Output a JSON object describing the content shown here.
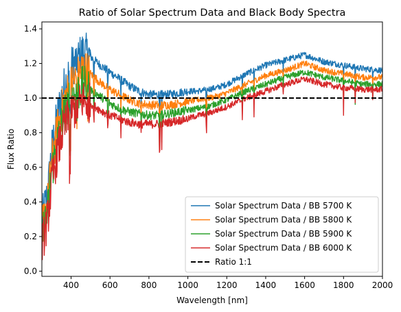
{
  "chart_data": {
    "type": "line",
    "title": "Ratio of Solar Spectrum Data and Black Body Spectra",
    "xlabel": "Wavelength [nm]",
    "ylabel": "Flux Ratio",
    "xlim": [
      250,
      2000
    ],
    "ylim": [
      -0.03,
      1.44
    ],
    "x_ticks": [
      400,
      600,
      800,
      1000,
      1200,
      1400,
      1600,
      1800,
      2000
    ],
    "y_ticks": [
      0.0,
      0.2,
      0.4,
      0.6,
      0.8,
      1.0,
      1.2,
      1.4
    ],
    "grid": false,
    "legend_position": "lower-right",
    "x": [
      250,
      280,
      300,
      330,
      360,
      400,
      430,
      460,
      500,
      550,
      600,
      650,
      700,
      750,
      800,
      850,
      900,
      950,
      1000,
      1050,
      1100,
      1150,
      1200,
      1300,
      1400,
      1500,
      1600,
      1700,
      1800,
      1900,
      2000
    ],
    "series": [
      {
        "name": "Solar Spectrum Data / BB 5700 K",
        "color": "#1f77b4",
        "values": [
          0.3,
          0.45,
          0.7,
          0.9,
          1.05,
          1.18,
          1.22,
          1.27,
          1.24,
          1.19,
          1.15,
          1.11,
          1.07,
          1.04,
          1.02,
          1.02,
          1.02,
          1.03,
          1.04,
          1.04,
          1.05,
          1.06,
          1.08,
          1.14,
          1.19,
          1.22,
          1.25,
          1.21,
          1.19,
          1.17,
          1.16
        ]
      },
      {
        "name": "Solar Spectrum Data / BB 5800 K",
        "color": "#ff7f0e",
        "values": [
          0.25,
          0.4,
          0.63,
          0.82,
          0.97,
          1.08,
          1.12,
          1.17,
          1.14,
          1.09,
          1.05,
          1.02,
          0.99,
          0.97,
          0.96,
          0.96,
          0.96,
          0.97,
          0.98,
          0.99,
          1.0,
          1.01,
          1.03,
          1.08,
          1.13,
          1.16,
          1.2,
          1.16,
          1.14,
          1.12,
          1.12
        ]
      },
      {
        "name": "Solar Spectrum Data / BB 5900 K",
        "color": "#2ca02c",
        "values": [
          0.2,
          0.35,
          0.57,
          0.75,
          0.89,
          1.0,
          1.03,
          1.07,
          1.05,
          1.01,
          0.97,
          0.94,
          0.92,
          0.91,
          0.9,
          0.9,
          0.91,
          0.92,
          0.93,
          0.94,
          0.95,
          0.97,
          0.99,
          1.04,
          1.08,
          1.12,
          1.15,
          1.12,
          1.1,
          1.08,
          1.08
        ]
      },
      {
        "name": "Solar Spectrum Data / BB 6000 K",
        "color": "#d62728",
        "values": [
          0.15,
          0.3,
          0.51,
          0.68,
          0.82,
          0.92,
          0.95,
          0.99,
          0.97,
          0.93,
          0.9,
          0.88,
          0.86,
          0.85,
          0.85,
          0.85,
          0.86,
          0.87,
          0.88,
          0.9,
          0.91,
          0.93,
          0.95,
          1.0,
          1.04,
          1.08,
          1.11,
          1.08,
          1.06,
          1.05,
          1.05
        ]
      }
    ],
    "reference_line": {
      "name": "Ratio 1:1",
      "y": 1.0,
      "color": "#000000",
      "style": "dashed"
    }
  }
}
